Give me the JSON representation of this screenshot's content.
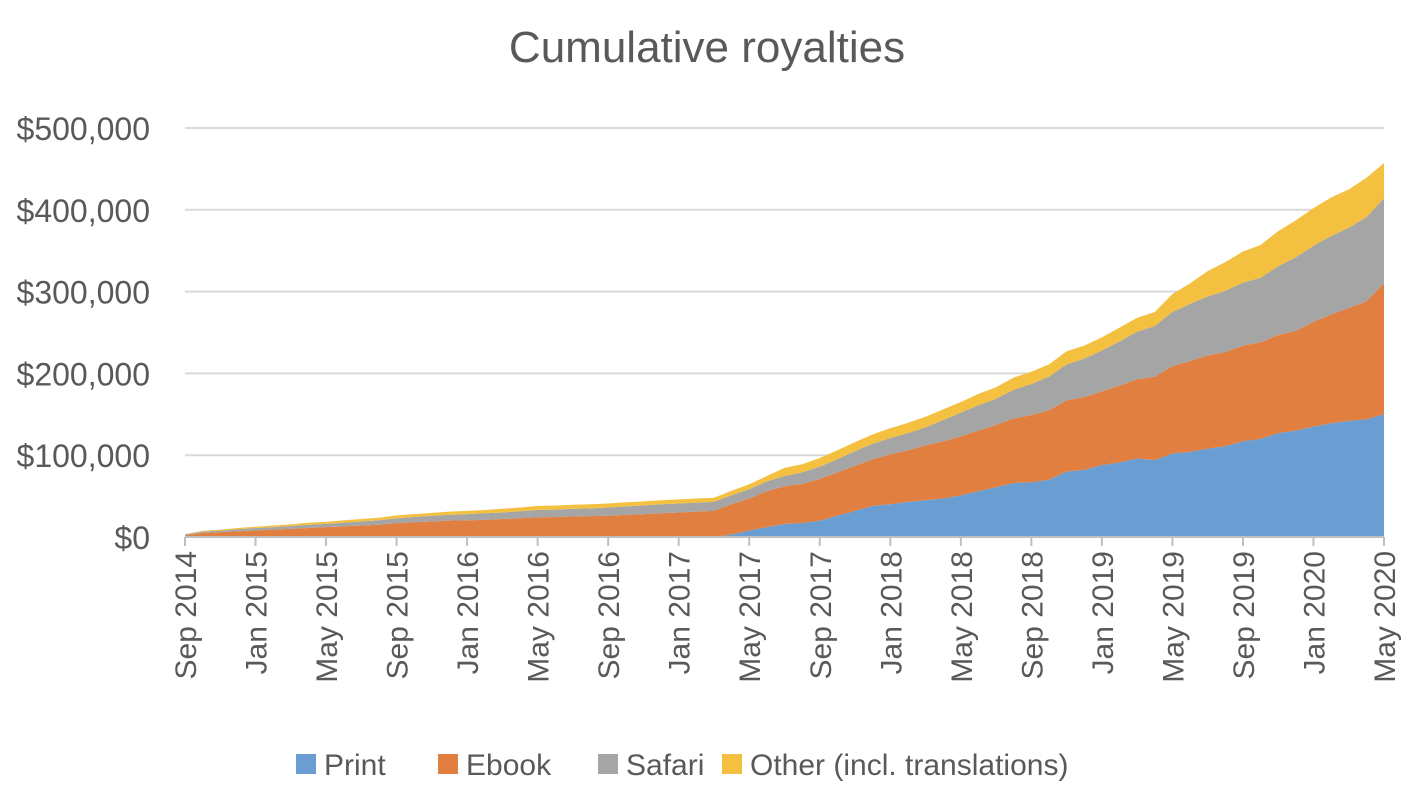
{
  "chart_data": {
    "type": "area",
    "stacked": true,
    "title": "Cumulative royalties",
    "xlabel": "",
    "ylabel": "",
    "ylim": [
      0,
      500000
    ],
    "y_ticks": [
      0,
      100000,
      200000,
      300000,
      400000,
      500000
    ],
    "y_tick_labels": [
      "$0",
      "$100,000",
      "$200,000",
      "$300,000",
      "$400,000",
      "$500,000"
    ],
    "grid": true,
    "legend_position": "bottom",
    "x": [
      "Sep 2014",
      "Oct 2014",
      "Nov 2014",
      "Dec 2014",
      "Jan 2015",
      "Feb 2015",
      "Mar 2015",
      "Apr 2015",
      "May 2015",
      "Jun 2015",
      "Jul 2015",
      "Aug 2015",
      "Sep 2015",
      "Oct 2015",
      "Nov 2015",
      "Dec 2015",
      "Jan 2016",
      "Feb 2016",
      "Mar 2016",
      "Apr 2016",
      "May 2016",
      "Jun 2016",
      "Jul 2016",
      "Aug 2016",
      "Sep 2016",
      "Oct 2016",
      "Nov 2016",
      "Dec 2016",
      "Jan 2017",
      "Feb 2017",
      "Mar 2017",
      "Apr 2017",
      "May 2017",
      "Jun 2017",
      "Jul 2017",
      "Aug 2017",
      "Sep 2017",
      "Oct 2017",
      "Nov 2017",
      "Dec 2017",
      "Jan 2018",
      "Feb 2018",
      "Mar 2018",
      "Apr 2018",
      "May 2018",
      "Jun 2018",
      "Jul 2018",
      "Aug 2018",
      "Sep 2018",
      "Oct 2018",
      "Nov 2018",
      "Dec 2018",
      "Jan 2019",
      "Feb 2019",
      "Mar 2019",
      "Apr 2019",
      "May 2019",
      "Jun 2019",
      "Jul 2019",
      "Aug 2019",
      "Sep 2019",
      "Oct 2019",
      "Nov 2019",
      "Dec 2019",
      "Jan 2020",
      "Feb 2020",
      "Mar 2020",
      "Apr 2020",
      "May 2020"
    ],
    "x_tick_labels": [
      "Sep 2014",
      "Jan 2015",
      "May 2015",
      "Sep 2015",
      "Jan 2016",
      "May 2016",
      "Sep 2016",
      "Jan 2017",
      "May 2017",
      "Sep 2017",
      "Jan 2018",
      "May 2018",
      "Sep 2018",
      "Jan 2019",
      "May 2019",
      "Sep 2019",
      "Jan 2020",
      "May 2020"
    ],
    "series": [
      {
        "name": "Print",
        "color": "#6a9ed3",
        "values": [
          0,
          0,
          0,
          0,
          0,
          0,
          0,
          0,
          0,
          0,
          0,
          0,
          0,
          0,
          0,
          0,
          0,
          0,
          0,
          0,
          0,
          0,
          0,
          0,
          0,
          0,
          0,
          0,
          0,
          0,
          0,
          3000,
          8000,
          12000,
          16000,
          17000,
          20000,
          26000,
          32000,
          38000,
          40000,
          43000,
          45000,
          47000,
          51000,
          56000,
          61000,
          66000,
          67000,
          70000,
          80000,
          82000,
          88000,
          91000,
          96000,
          94000,
          102000,
          104000,
          108000,
          111000,
          117000,
          120000,
          127000,
          130000,
          135000,
          139000,
          142000,
          144000,
          150000
        ]
      },
      {
        "name": "Ebook",
        "color": "#e07f3f",
        "values": [
          2000,
          5000,
          6000,
          7000,
          8000,
          9000,
          10000,
          11000,
          12000,
          13000,
          14000,
          15000,
          17000,
          18000,
          19000,
          20000,
          20500,
          21000,
          22000,
          23000,
          24000,
          24500,
          25000,
          25500,
          26000,
          27000,
          28000,
          29000,
          30000,
          31000,
          32000,
          37000,
          39000,
          44000,
          46000,
          48000,
          51000,
          53000,
          55000,
          57000,
          61000,
          63000,
          67000,
          70000,
          72000,
          74000,
          76000,
          79000,
          82000,
          85000,
          87000,
          89000,
          90000,
          94000,
          97000,
          102000,
          107000,
          111000,
          114000,
          115000,
          117000,
          118000,
          120000,
          122000,
          128000,
          133000,
          138000,
          144000,
          160000
        ]
      },
      {
        "name": "Safari",
        "color": "#a5a5a5",
        "values": [
          1000,
          1500,
          2000,
          2500,
          3000,
          3000,
          3500,
          4000,
          4000,
          4500,
          5000,
          5500,
          6000,
          6500,
          7000,
          7000,
          7500,
          8000,
          8000,
          8500,
          9000,
          9000,
          9500,
          9500,
          10000,
          10500,
          10500,
          11000,
          11000,
          11000,
          11000,
          11000,
          11500,
          12000,
          12500,
          14000,
          15000,
          16000,
          18000,
          19000,
          20000,
          21000,
          22000,
          26000,
          29000,
          31000,
          32000,
          35000,
          38000,
          41000,
          44000,
          47000,
          50000,
          54000,
          58000,
          62000,
          66000,
          70000,
          72000,
          75000,
          77000,
          79000,
          84000,
          90000,
          93000,
          96000,
          98000,
          103000,
          104000
        ]
      },
      {
        "name": "Other (incl. translations)",
        "color": "#f4c040",
        "values": [
          500,
          1000,
          1000,
          1500,
          1500,
          2000,
          2000,
          2500,
          2500,
          3000,
          3000,
          3000,
          3500,
          3500,
          3500,
          4000,
          4000,
          4000,
          4500,
          4500,
          5000,
          5000,
          5000,
          5000,
          5000,
          5000,
          5000,
          5000,
          5000,
          5000,
          5000,
          5500,
          6000,
          6500,
          10000,
          10000,
          10500,
          11000,
          11000,
          11500,
          12000,
          12500,
          13000,
          13000,
          13000,
          14000,
          14000,
          15000,
          15000,
          15000,
          16000,
          16000,
          16000,
          17000,
          17000,
          17000,
          22000,
          25000,
          31000,
          35000,
          38000,
          40000,
          43000,
          45000,
          46000,
          47000,
          47000,
          48000,
          43000
        ]
      }
    ]
  }
}
